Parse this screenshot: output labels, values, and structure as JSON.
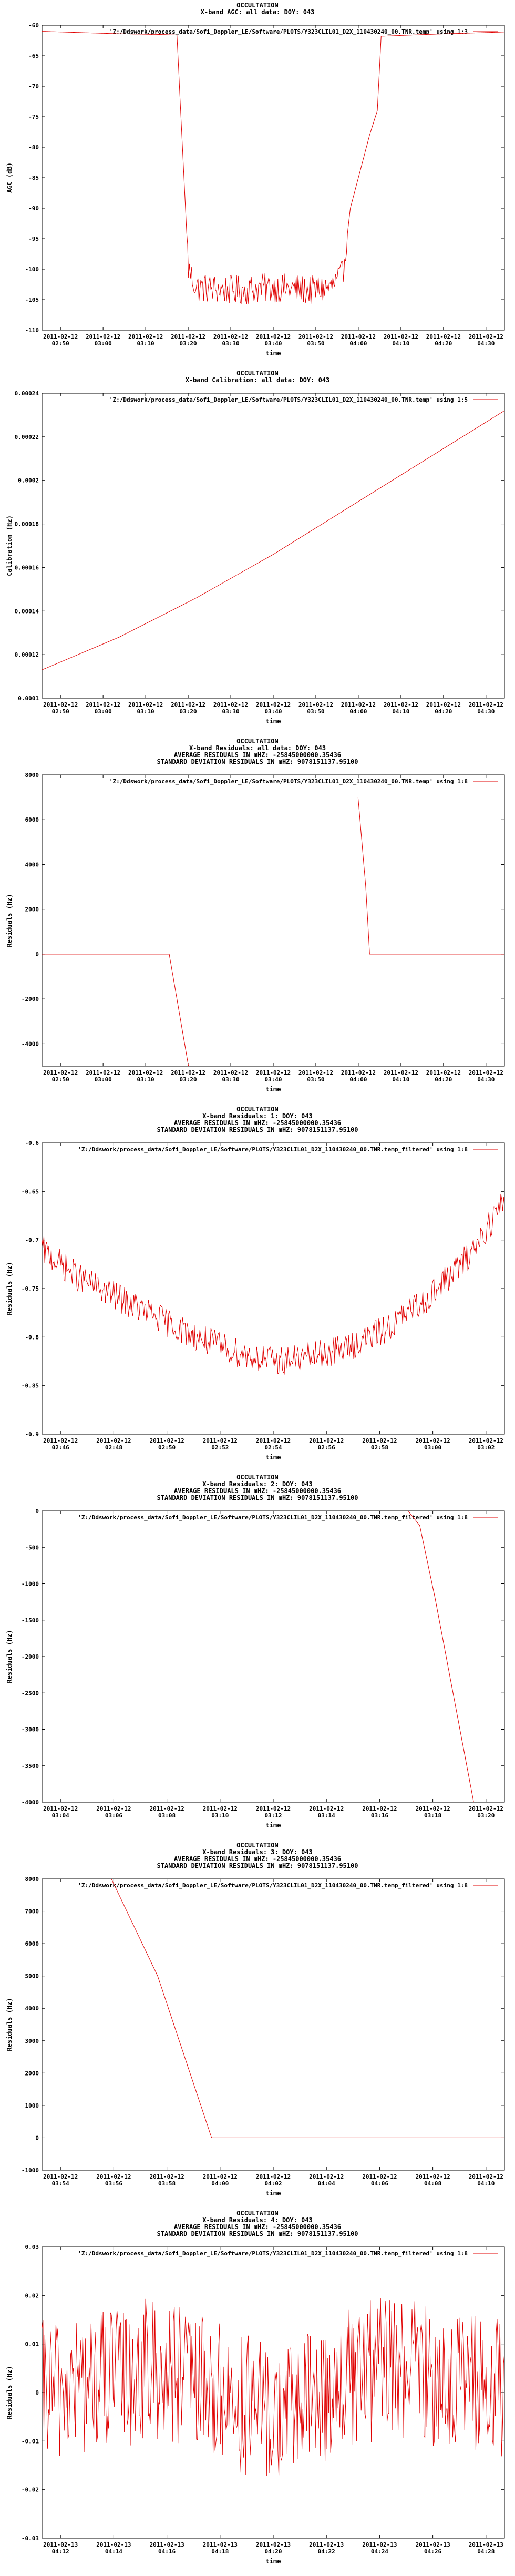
{
  "chart_data": [
    {
      "type": "line",
      "title": "OCCULTATION",
      "subtitles": [
        "X-band AGC: all data: DOY: 043"
      ],
      "xlabel": "time",
      "ylabel": "AGC (dB)",
      "ylim": [
        -110,
        -60
      ],
      "yticks": [
        -110,
        -105,
        -100,
        -95,
        -90,
        -85,
        -80,
        -75,
        -70,
        -65,
        -60
      ],
      "xlim": [
        0,
        1.2
      ],
      "xticks": [
        {
          "d": "2011-02-12",
          "t": "02:50"
        },
        {
          "d": "2011-02-12",
          "t": "03:00"
        },
        {
          "d": "2011-02-12",
          "t": "03:10"
        },
        {
          "d": "2011-02-12",
          "t": "03:20"
        },
        {
          "d": "2011-02-12",
          "t": "03:30"
        },
        {
          "d": "2011-02-12",
          "t": "03:40"
        },
        {
          "d": "2011-02-12",
          "t": "03:50"
        },
        {
          "d": "2011-02-12",
          "t": "04:00"
        },
        {
          "d": "2011-02-12",
          "t": "04:10"
        },
        {
          "d": "2011-02-12",
          "t": "04:20"
        },
        {
          "d": "2011-02-12",
          "t": "04:30"
        }
      ],
      "legend": "'Z:/Ddswork/process_data/Sofi_Doppler_LE/Software/PLOTS/Y323CLIL01_D2X_110430240_00.TNR.temp' using 1:3",
      "series": [
        {
          "values": [
            [
              0,
              -61
            ],
            [
              0.1,
              -61.2
            ],
            [
              0.2,
              -61.4
            ],
            [
              0.3,
              -61.5
            ],
            [
              0.35,
              -61.6
            ],
            [
              0.38,
              -100
            ],
            [
              0.4,
              -103
            ],
            [
              0.5,
              -103.5
            ],
            [
              0.6,
              -103
            ],
            [
              0.7,
              -103.5
            ],
            [
              0.75,
              -103
            ],
            [
              0.78,
              -101
            ],
            [
              0.8,
              -90
            ],
            [
              0.85,
              -78
            ],
            [
              0.87,
              -74
            ],
            [
              0.88,
              -61.8
            ],
            [
              1.0,
              -61.5
            ],
            [
              1.1,
              -61.3
            ],
            [
              1.2,
              -61.1
            ]
          ]
        }
      ]
    },
    {
      "type": "line",
      "title": "OCCULTATION",
      "subtitles": [
        "X-band Calibration: all data: DOY: 043"
      ],
      "xlabel": "time",
      "ylabel": "Calibration (Hz)",
      "ylim": [
        0.0001,
        0.00024
      ],
      "yticks": [
        0.0001,
        0.00012,
        0.00014,
        0.00016,
        0.00018,
        0.0002,
        0.00022,
        0.00024
      ],
      "ytick_labels": [
        "0.0001",
        "0.00012",
        "0.00014",
        "0.00016",
        "0.00018",
        "0.0002",
        "0.00022",
        "0.00024"
      ],
      "xlim": [
        0,
        1.2
      ],
      "xticks": [
        {
          "d": "2011-02-12",
          "t": "02:50"
        },
        {
          "d": "2011-02-12",
          "t": "03:00"
        },
        {
          "d": "2011-02-12",
          "t": "03:10"
        },
        {
          "d": "2011-02-12",
          "t": "03:20"
        },
        {
          "d": "2011-02-12",
          "t": "03:30"
        },
        {
          "d": "2011-02-12",
          "t": "03:40"
        },
        {
          "d": "2011-02-12",
          "t": "03:50"
        },
        {
          "d": "2011-02-12",
          "t": "04:00"
        },
        {
          "d": "2011-02-12",
          "t": "04:10"
        },
        {
          "d": "2011-02-12",
          "t": "04:20"
        },
        {
          "d": "2011-02-12",
          "t": "04:30"
        }
      ],
      "legend": "'Z:/Ddswork/process_data/Sofi_Doppler_LE/Software/PLOTS/Y323CLIL01_D2X_110430240_00.TNR.temp' using 1:5",
      "series": [
        {
          "values": [
            [
              0,
              0.000113
            ],
            [
              0.2,
              0.000128
            ],
            [
              0.4,
              0.000146
            ],
            [
              0.6,
              0.000166
            ],
            [
              0.8,
              0.000188
            ],
            [
              1.0,
              0.00021
            ],
            [
              1.2,
              0.000232
            ]
          ]
        }
      ]
    },
    {
      "type": "line",
      "title": "OCCULTATION",
      "subtitles": [
        "X-band Residuals: all data: DOY: 043",
        "AVERAGE RESIDUALS IN mHZ: -25845000000.35436",
        "STANDARD DEVIATION RESIDUALS IN mHZ: 9078151137.95100"
      ],
      "xlabel": "time",
      "ylabel": "Residuals (Hz)",
      "ylim": [
        -5000,
        8000
      ],
      "yticks": [
        -4000,
        -2000,
        0,
        2000,
        4000,
        6000,
        8000
      ],
      "xlim": [
        0,
        1.2
      ],
      "xticks": [
        {
          "d": "2011-02-12",
          "t": "02:50"
        },
        {
          "d": "2011-02-12",
          "t": "03:00"
        },
        {
          "d": "2011-02-12",
          "t": "03:10"
        },
        {
          "d": "2011-02-12",
          "t": "03:20"
        },
        {
          "d": "2011-02-12",
          "t": "03:30"
        },
        {
          "d": "2011-02-12",
          "t": "03:40"
        },
        {
          "d": "2011-02-12",
          "t": "03:50"
        },
        {
          "d": "2011-02-12",
          "t": "04:00"
        },
        {
          "d": "2011-02-12",
          "t": "04:10"
        },
        {
          "d": "2011-02-12",
          "t": "04:20"
        },
        {
          "d": "2011-02-12",
          "t": "04:30"
        }
      ],
      "legend": "'Z:/Ddswork/process_data/Sofi_Doppler_LE/Software/PLOTS/Y323CLIL01_D2X_110430240_00.TNR.temp' using 1:8",
      "series": [
        {
          "values": [
            [
              0,
              0
            ],
            [
              0.33,
              0
            ],
            [
              0.38,
              -5000
            ]
          ]
        },
        {
          "values": [
            [
              0.82,
              7000
            ],
            [
              0.84,
              3000
            ],
            [
              0.85,
              0
            ],
            [
              1.2,
              0
            ]
          ]
        }
      ]
    },
    {
      "type": "line",
      "title": "OCCULTATION",
      "subtitles": [
        "X-band Residuals: 1: DOY: 043",
        "AVERAGE RESIDUALS IN mHZ: -25845000000.35436",
        "STANDARD DEVIATION RESIDUALS IN mHZ: 9078151137.95100"
      ],
      "xlabel": "time",
      "ylabel": "Residuals (Hz)",
      "ylim": [
        -0.9,
        -0.6
      ],
      "yticks": [
        -0.9,
        -0.85,
        -0.8,
        -0.75,
        -0.7,
        -0.65,
        -0.6
      ],
      "xlim": [
        0,
        1.2
      ],
      "xticks": [
        {
          "d": "2011-02-12",
          "t": "02:46"
        },
        {
          "d": "2011-02-12",
          "t": "02:48"
        },
        {
          "d": "2011-02-12",
          "t": "02:50"
        },
        {
          "d": "2011-02-12",
          "t": "02:52"
        },
        {
          "d": "2011-02-12",
          "t": "02:54"
        },
        {
          "d": "2011-02-12",
          "t": "02:56"
        },
        {
          "d": "2011-02-12",
          "t": "02:58"
        },
        {
          "d": "2011-02-12",
          "t": "03:00"
        },
        {
          "d": "2011-02-12",
          "t": "03:02"
        }
      ],
      "legend": "'Z:/Ddswork/process_data/Sofi_Doppler_LE/Software/PLOTS/Y323CLIL01_D2X_110430240_00.TNR.temp_filtered' using 1:8",
      "series": [
        {
          "values": [
            [
              0,
              -0.71
            ],
            [
              0.1,
              -0.74
            ],
            [
              0.2,
              -0.76
            ],
            [
              0.3,
              -0.78
            ],
            [
              0.4,
              -0.8
            ],
            [
              0.5,
              -0.815
            ],
            [
              0.6,
              -0.825
            ],
            [
              0.7,
              -0.82
            ],
            [
              0.8,
              -0.81
            ],
            [
              0.9,
              -0.79
            ],
            [
              1.0,
              -0.76
            ],
            [
              1.1,
              -0.72
            ],
            [
              1.2,
              -0.66
            ]
          ]
        }
      ]
    },
    {
      "type": "line",
      "title": "OCCULTATION",
      "subtitles": [
        "X-band Residuals: 2: DOY: 043",
        "AVERAGE RESIDUALS IN mHZ: -25845000000.35436",
        "STANDARD DEVIATION RESIDUALS IN mHZ: 9078151137.95100"
      ],
      "xlabel": "time",
      "ylabel": "Residuals (Hz)",
      "ylim": [
        -4000,
        0
      ],
      "yticks": [
        -4000,
        -3500,
        -3000,
        -2500,
        -2000,
        -1500,
        -1000,
        -500,
        0
      ],
      "xlim": [
        0,
        1.2
      ],
      "xticks": [
        {
          "d": "2011-02-12",
          "t": "03:04"
        },
        {
          "d": "2011-02-12",
          "t": "03:06"
        },
        {
          "d": "2011-02-12",
          "t": "03:08"
        },
        {
          "d": "2011-02-12",
          "t": "03:10"
        },
        {
          "d": "2011-02-12",
          "t": "03:12"
        },
        {
          "d": "2011-02-12",
          "t": "03:14"
        },
        {
          "d": "2011-02-12",
          "t": "03:16"
        },
        {
          "d": "2011-02-12",
          "t": "03:18"
        },
        {
          "d": "2011-02-12",
          "t": "03:20"
        }
      ],
      "legend": "'Z:/Ddswork/process_data/Sofi_Doppler_LE/Software/PLOTS/Y323CLIL01_D2X_110430240_00.TNR.temp_filtered' using 1:8",
      "series": [
        {
          "values": [
            [
              0,
              0
            ],
            [
              0.95,
              0
            ],
            [
              0.98,
              -200
            ],
            [
              1.02,
              -1200
            ],
            [
              1.07,
              -2600
            ],
            [
              1.12,
              -4000
            ]
          ]
        }
      ]
    },
    {
      "type": "line",
      "title": "OCCULTATION",
      "subtitles": [
        "X-band Residuals: 3: DOY: 043",
        "AVERAGE RESIDUALS IN mHZ: -25845000000.35436",
        "STANDARD DEVIATION RESIDUALS IN mHZ: 9078151137.95100"
      ],
      "xlabel": "time",
      "ylabel": "Residuals (Hz)",
      "ylim": [
        -1000,
        8000
      ],
      "yticks": [
        -1000,
        0,
        1000,
        2000,
        3000,
        4000,
        5000,
        6000,
        7000,
        8000
      ],
      "xlim": [
        0,
        1.2
      ],
      "xticks": [
        {
          "d": "2011-02-12",
          "t": "03:54"
        },
        {
          "d": "2011-02-12",
          "t": "03:56"
        },
        {
          "d": "2011-02-12",
          "t": "03:58"
        },
        {
          "d": "2011-02-12",
          "t": "04:00"
        },
        {
          "d": "2011-02-12",
          "t": "04:02"
        },
        {
          "d": "2011-02-12",
          "t": "04:04"
        },
        {
          "d": "2011-02-12",
          "t": "04:06"
        },
        {
          "d": "2011-02-12",
          "t": "04:08"
        },
        {
          "d": "2011-02-12",
          "t": "04:10"
        }
      ],
      "legend": "'Z:/Ddswork/process_data/Sofi_Doppler_LE/Software/PLOTS/Y323CLIL01_D2X_110430240_00.TNR.temp_filtered' using 1:8",
      "series": [
        {
          "values": [
            [
              0.18,
              8000
            ],
            [
              0.3,
              5000
            ],
            [
              0.44,
              0
            ],
            [
              1.2,
              0
            ]
          ]
        }
      ]
    },
    {
      "type": "line",
      "title": "OCCULTATION",
      "subtitles": [
        "X-band Residuals: 4: DOY: 043",
        "AVERAGE RESIDUALS IN mHZ: -25845000000.35436",
        "STANDARD DEVIATION RESIDUALS IN mHZ: 9078151137.95100"
      ],
      "xlabel": "time",
      "ylabel": "Residuals (Hz)",
      "ylim": [
        -0.03,
        0.03
      ],
      "yticks": [
        -0.03,
        -0.02,
        -0.01,
        0,
        0.01,
        0.02,
        0.03
      ],
      "xlim": [
        0,
        1.2
      ],
      "xticks": [
        {
          "d": "2011-02-13",
          "t": "04:12"
        },
        {
          "d": "2011-02-13",
          "t": "04:14"
        },
        {
          "d": "2011-02-13",
          "t": "04:16"
        },
        {
          "d": "2011-02-13",
          "t": "04:18"
        },
        {
          "d": "2011-02-13",
          "t": "04:20"
        },
        {
          "d": "2011-02-13",
          "t": "04:22"
        },
        {
          "d": "2011-02-13",
          "t": "04:24"
        },
        {
          "d": "2011-02-13",
          "t": "04:26"
        },
        {
          "d": "2011-02-13",
          "t": "04:28"
        }
      ],
      "legend": "'Z:/Ddswork/process_data/Sofi_Doppler_LE/Software/PLOTS/Y323CLIL01_D2X_110430240_00.TNR.temp_filtered' using 1:8",
      "series": [
        {
          "values": [
            [
              0,
              0
            ],
            [
              0.3,
              0.005
            ],
            [
              0.6,
              -0.005
            ],
            [
              0.9,
              0.006
            ],
            [
              1.2,
              0
            ]
          ]
        }
      ]
    }
  ]
}
